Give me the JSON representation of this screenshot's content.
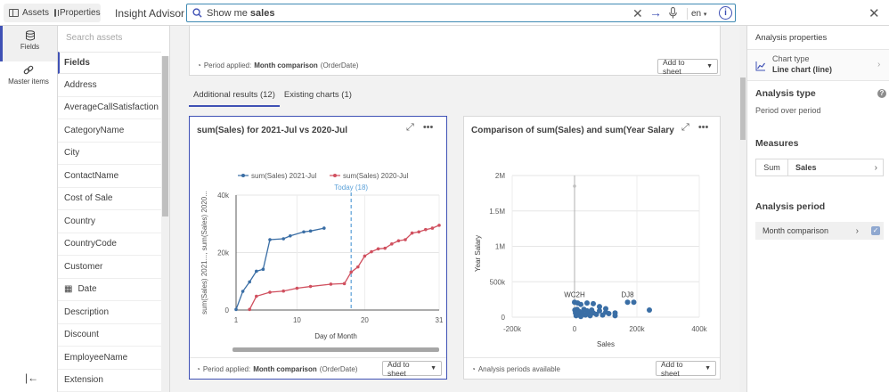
{
  "topbar": {
    "assets_label": "Assets",
    "properties_label": "Properties",
    "app_title": "Insight Advisor",
    "search_prefix": "Show me ",
    "search_term": "sales",
    "language": "en",
    "info_label": "i"
  },
  "rail": {
    "fields_label": "Fields",
    "master_items_label": "Master items"
  },
  "fields_panel": {
    "search_placeholder": "Search assets",
    "header": "Fields",
    "items": [
      {
        "label": "Address"
      },
      {
        "label": "AverageCallSatisfaction"
      },
      {
        "label": "CategoryName"
      },
      {
        "label": "City"
      },
      {
        "label": "ContactName"
      },
      {
        "label": "Cost of Sale"
      },
      {
        "label": "Country"
      },
      {
        "label": "CountryCode"
      },
      {
        "label": "Customer"
      },
      {
        "label": "Date",
        "icon": "calendar-icon"
      },
      {
        "label": "Description"
      },
      {
        "label": "Discount"
      },
      {
        "label": "EmployeeName"
      },
      {
        "label": "Extension"
      }
    ]
  },
  "top_card": {
    "period_prefix": "Period applied:",
    "period_value": "Month comparison",
    "period_field": "(OrderDate)",
    "add_label": "Add to sheet"
  },
  "tabs": [
    {
      "label": "Additional results (12)",
      "active": true
    },
    {
      "label": "Existing charts (1)",
      "active": false
    }
  ],
  "card1": {
    "title": "sum(Sales) for 2021-Jul vs 2020-Jul",
    "period_prefix": "Period applied:",
    "period_value": "Month comparison",
    "period_field": "(OrderDate)",
    "add_label": "Add to sheet"
  },
  "card2": {
    "title": "Comparison of sum(Sales) and sum(Year Salary) f...",
    "footer_text": "Analysis periods available",
    "add_label": "Add to sheet"
  },
  "line_chart": {
    "type": "line",
    "legend": [
      "sum(Sales) 2021-Jul",
      "sum(Sales) 2020-Jul"
    ],
    "ylabel": "sum(Sales) 2021..., sum(Sales) 2020...",
    "xlabel": "Day of Month",
    "x_ticks": [
      "1",
      "10",
      "20",
      "31"
    ],
    "y_ticks": [
      "0",
      "20k",
      "40k"
    ],
    "xlim": [
      1,
      31
    ],
    "ylim": [
      0,
      40000
    ],
    "reference_label": "Today (18)",
    "reference_x": 18,
    "colors": {
      "s2021": "#3a6ea5",
      "s2020": "#d0505f",
      "ref": "#5aa0d8"
    }
  },
  "scatter_chart": {
    "type": "scatter",
    "ylabel": "Year Salary",
    "xlabel": "Sales",
    "x_ticks": [
      "-200k",
      "0",
      "200k",
      "400k"
    ],
    "y_ticks": [
      "0",
      "500k",
      "1M",
      "1.5M",
      "2M"
    ],
    "xlim": [
      -200000,
      400000
    ],
    "ylim": [
      0,
      2000000
    ],
    "point_labels": [
      {
        "text": "WC2H",
        "x": 0,
        "y": 210000
      },
      {
        "text": "DJ8",
        "x": 170000,
        "y": 210000
      }
    ],
    "color": "#3a6ea5"
  },
  "chart_data": [
    {
      "type": "line",
      "title": "sum(Sales) for 2021-Jul vs 2020-Jul",
      "xlabel": "Day of Month",
      "ylabel": "sum(Sales) 2021..., sum(Sales) 2020...",
      "xlim": [
        1,
        31
      ],
      "ylim": [
        0,
        40000
      ],
      "legend": "top",
      "series": [
        {
          "name": "sum(Sales) 2021-Jul",
          "x": [
            1,
            2,
            3,
            4,
            5,
            6,
            8,
            9,
            11,
            12,
            14
          ],
          "y": [
            200,
            6500,
            9800,
            13500,
            14200,
            24500,
            24800,
            25800,
            27200,
            27500,
            28500
          ]
        },
        {
          "name": "sum(Sales) 2020-Jul",
          "x": [
            3,
            4,
            6,
            8,
            10,
            12,
            15,
            17,
            18,
            19,
            20,
            21,
            22,
            23,
            24,
            25,
            26,
            27,
            28,
            29,
            30,
            31
          ],
          "y": [
            200,
            4800,
            6200,
            6600,
            7600,
            8200,
            9000,
            9200,
            13200,
            15000,
            18800,
            20300,
            21300,
            21500,
            23000,
            24100,
            24500,
            26800,
            27200,
            28000,
            28500,
            29500
          ]
        }
      ]
    },
    {
      "type": "scatter",
      "title": "Comparison of sum(Sales) and sum(Year Salary) f...",
      "xlabel": "Sales",
      "ylabel": "Year Salary",
      "xlim": [
        -200000,
        400000
      ],
      "ylim": [
        0,
        2000000
      ],
      "series": [
        {
          "x": [
            0,
            1000,
            3000,
            5000,
            8000,
            12000,
            15000,
            20000,
            25000,
            30000,
            35000,
            40000,
            45000,
            50000,
            55000,
            60000,
            70000,
            80000,
            90000,
            100000,
            110000,
            130000,
            170000,
            190000,
            240000,
            0,
            10000,
            20000,
            40000,
            60000,
            80000,
            100000,
            130000
          ],
          "y": [
            1850000,
            100000,
            60000,
            20000,
            110000,
            40000,
            80000,
            10000,
            60000,
            110000,
            30000,
            90000,
            50000,
            20000,
            100000,
            60000,
            40000,
            90000,
            30000,
            70000,
            50000,
            20000,
            210000,
            210000,
            100000,
            210000,
            200000,
            180000,
            200000,
            190000,
            150000,
            120000,
            60000
          ]
        }
      ]
    }
  ],
  "right_panel": {
    "title": "Analysis properties",
    "chart_type_label": "Chart type",
    "chart_type_value": "Line chart (line)",
    "analysis_type_header": "Analysis type",
    "analysis_type_value": "Period over period",
    "measures_header": "Measures",
    "measure_agg": "Sum",
    "measure_name": "Sales",
    "period_header": "Analysis period",
    "period_value": "Month comparison"
  }
}
